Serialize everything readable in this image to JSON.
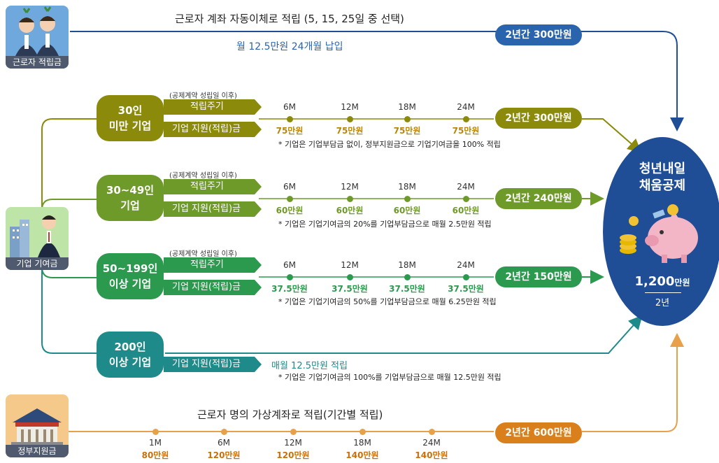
{
  "colors": {
    "worker": "#2a64ad",
    "tier30": "#8c8a0a",
    "tier30_49": "#6e9a2a",
    "tier50_199": "#2c9a4e",
    "tier200": "#1f8a8a",
    "gov": "#d97f1c",
    "circle": "#1f4e96"
  },
  "worker": {
    "icon_label": "근로자 적립금",
    "title": "근로자 계좌 자동이체로 적립 (5, 15, 25일 중 선택)",
    "subtitle": "월 12.5만원 24개월 납입",
    "total": "2년간 300만원"
  },
  "company": {
    "icon_label": "기업 기여금"
  },
  "tiers": [
    {
      "name_line1": "30인",
      "name_line2": "미만 기업",
      "contract_note": "(공제계약 성립일 이후)",
      "cycle_label": "적립주기",
      "support_label": "기업 지원(적립)금",
      "months": [
        "6M",
        "12M",
        "18M",
        "24M"
      ],
      "amounts": [
        "75만원",
        "75만원",
        "75만원",
        "75만원"
      ],
      "note": "* 기업은 기업부담금 없이, 정부지원금으로 기업기여금을 100% 적립",
      "total": "2년간 300만원"
    },
    {
      "name_line1": "30~49인",
      "name_line2": "기업",
      "contract_note": "(공제계약 성립일 이후)",
      "cycle_label": "적립주기",
      "support_label": "기업 지원(적립)금",
      "months": [
        "6M",
        "12M",
        "18M",
        "24M"
      ],
      "amounts": [
        "60만원",
        "60만원",
        "60만원",
        "60만원"
      ],
      "note": "* 기업은 기업기여금의 20%를 기업부담금으로 매월 2.5만원 적립",
      "total": "2년간 240만원"
    },
    {
      "name_line1": "50~199인",
      "name_line2": "이상 기업",
      "contract_note": "(공제계약 성립일 이후)",
      "cycle_label": "적립주기",
      "support_label": "기업 지원(적립)금",
      "months": [
        "6M",
        "12M",
        "18M",
        "24M"
      ],
      "amounts": [
        "37.5만원",
        "37.5만원",
        "37.5만원",
        "37.5만원"
      ],
      "note": "* 기업은 기업기여금의 50%를 기업부담금으로 매월 6.25만원 적립",
      "total": "2년간 150만원"
    },
    {
      "name_line1": "200인",
      "name_line2": "이상 기업",
      "support_label": "기업 지원(적립)금",
      "monthly": "매월 12.5만원 적립",
      "note": "* 기업은 기업기여금의 100%를 기업부담금으로 매월 12.5만원 적립"
    }
  ],
  "gov": {
    "icon_label": "정부지원금",
    "title": "근로자 명의 가상계좌로 적립(기간별 적립)",
    "months": [
      "1M",
      "6M",
      "12M",
      "18M",
      "24M"
    ],
    "amounts": [
      "80만원",
      "120만원",
      "120만원",
      "140만원",
      "140만원"
    ],
    "total": "2년간 600만원"
  },
  "result": {
    "title_line1": "청년내일",
    "title_line2": "채움공제",
    "amount": "1,200",
    "unit": "만원",
    "period": "2년"
  }
}
